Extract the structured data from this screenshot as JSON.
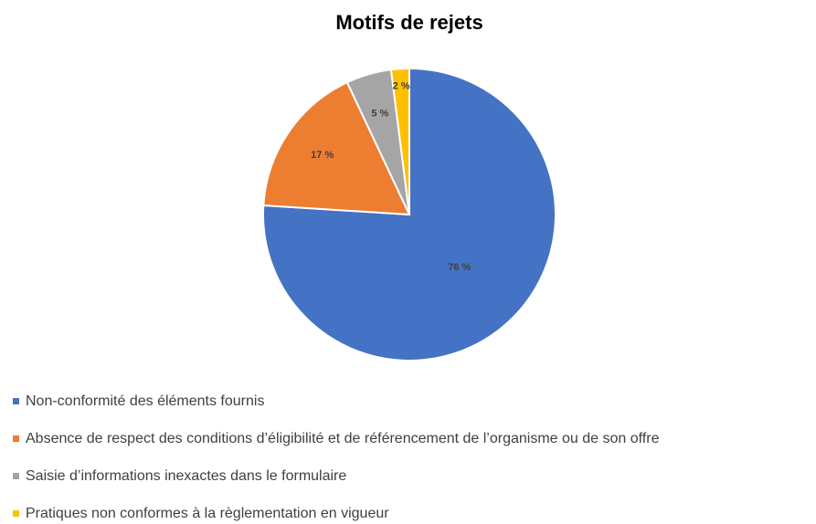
{
  "chart_data": {
    "type": "pie",
    "title": "Motifs de rejets",
    "categories": [
      "Non-conformité des éléments fournis",
      "Absence de respect des conditions d’éligibilité  et de référencement de l’organisme ou de son offre",
      "Saisie d’informations inexactes dans le formulaire",
      "Pratiques non conformes à la règlementation en vigueur"
    ],
    "values": [
      76,
      17,
      5,
      2
    ],
    "value_labels": [
      "76 %",
      "17 %",
      "5 %",
      "2 %"
    ],
    "colors": [
      "#4472c4",
      "#ed7d31",
      "#a5a5a5",
      "#ffc000"
    ]
  }
}
